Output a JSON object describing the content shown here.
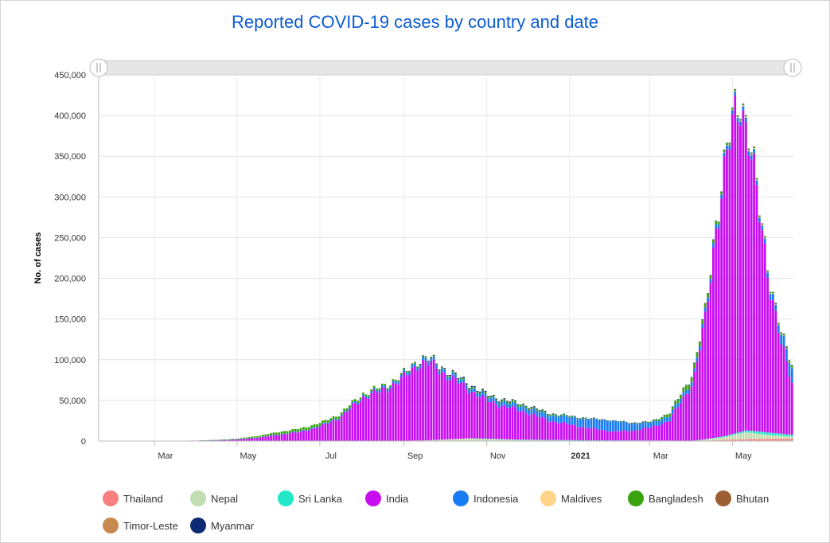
{
  "chart_data": {
    "type": "bar",
    "stacked": true,
    "title": "Reported COVID-19 cases by country and date",
    "ylabel": "No. of cases",
    "xlabel": "",
    "ylim": [
      0,
      450000
    ],
    "xlim": [
      "2020-01-20",
      "2021-06-15"
    ],
    "y_ticks": [
      "0",
      "50,000",
      "100,000",
      "150,000",
      "200,000",
      "250,000",
      "300,000",
      "350,000",
      "400,000",
      "450,000"
    ],
    "x_ticks": [
      {
        "label": "Mar",
        "date": "2020-03-01",
        "bold": false
      },
      {
        "label": "May",
        "date": "2020-05-01",
        "bold": false
      },
      {
        "label": "Jul",
        "date": "2020-07-01",
        "bold": false
      },
      {
        "label": "Sep",
        "date": "2020-09-01",
        "bold": false
      },
      {
        "label": "Nov",
        "date": "2020-11-01",
        "bold": false
      },
      {
        "label": "2021",
        "date": "2021-01-01",
        "bold": true
      },
      {
        "label": "Mar",
        "date": "2021-03-01",
        "bold": false
      },
      {
        "label": "May",
        "date": "2021-05-01",
        "bold": false
      }
    ],
    "grid": true,
    "legend_position": "bottom",
    "series": [
      {
        "name": "Thailand",
        "color": "#f77f7f",
        "points": [
          [
            "2020-01-20",
            0
          ],
          [
            "2021-04-01",
            0
          ],
          [
            "2021-04-15",
            800
          ],
          [
            "2021-05-01",
            2000
          ],
          [
            "2021-05-15",
            2500
          ],
          [
            "2021-06-01",
            3000
          ],
          [
            "2021-06-15",
            3500
          ]
        ]
      },
      {
        "name": "Nepal",
        "color": "#c2ddb0",
        "points": [
          [
            "2020-01-20",
            0
          ],
          [
            "2020-08-10",
            0
          ],
          [
            "2020-09-15",
            800
          ],
          [
            "2020-10-20",
            3500
          ],
          [
            "2020-11-20",
            1500
          ],
          [
            "2021-01-15",
            300
          ],
          [
            "2021-04-01",
            200
          ],
          [
            "2021-04-25",
            3500
          ],
          [
            "2021-05-10",
            8500
          ],
          [
            "2021-05-25",
            5000
          ],
          [
            "2021-06-15",
            1500
          ]
        ]
      },
      {
        "name": "Sri Lanka",
        "color": "#22e8c8",
        "points": [
          [
            "2020-01-20",
            0
          ],
          [
            "2020-10-20",
            0
          ],
          [
            "2020-11-15",
            400
          ],
          [
            "2021-01-15",
            600
          ],
          [
            "2021-04-10",
            300
          ],
          [
            "2021-05-01",
            1500
          ],
          [
            "2021-05-20",
            3000
          ],
          [
            "2021-06-15",
            2500
          ]
        ]
      },
      {
        "name": "India",
        "color": "#c80ef0",
        "points": [
          [
            "2020-01-20",
            0
          ],
          [
            "2020-03-01",
            0
          ],
          [
            "2020-03-25",
            500
          ],
          [
            "2020-04-15",
            1000
          ],
          [
            "2020-05-01",
            2000
          ],
          [
            "2020-05-15",
            4000
          ],
          [
            "2020-06-01",
            8000
          ],
          [
            "2020-06-15",
            11000
          ],
          [
            "2020-07-01",
            18000
          ],
          [
            "2020-07-15",
            29000
          ],
          [
            "2020-08-01",
            54000
          ],
          [
            "2020-08-15",
            62000
          ],
          [
            "2020-09-01",
            78000
          ],
          [
            "2020-09-10",
            94000
          ],
          [
            "2020-09-17",
            96000
          ],
          [
            "2020-10-01",
            80000
          ],
          [
            "2020-10-15",
            63000
          ],
          [
            "2020-11-01",
            46000
          ],
          [
            "2020-11-15",
            40000
          ],
          [
            "2020-12-01",
            33000
          ],
          [
            "2020-12-15",
            24000
          ],
          [
            "2021-01-01",
            19000
          ],
          [
            "2021-01-15",
            15000
          ],
          [
            "2021-02-01",
            11000
          ],
          [
            "2021-02-15",
            12000
          ],
          [
            "2021-03-01",
            16000
          ],
          [
            "2021-03-15",
            25000
          ],
          [
            "2021-04-01",
            72000
          ],
          [
            "2021-04-10",
            145000
          ],
          [
            "2021-04-18",
            260000
          ],
          [
            "2021-04-26",
            340000
          ],
          [
            "2021-05-01",
            385000
          ],
          [
            "2021-05-06",
            410000
          ],
          [
            "2021-05-12",
            360000
          ],
          [
            "2021-05-20",
            265000
          ],
          [
            "2021-05-28",
            180000
          ],
          [
            "2021-06-05",
            110000
          ],
          [
            "2021-06-10",
            80000
          ],
          [
            "2021-06-15",
            55000
          ]
        ]
      },
      {
        "name": "Indonesia",
        "color": "#1a7cf4",
        "points": [
          [
            "2020-01-20",
            0
          ],
          [
            "2020-04-01",
            0
          ],
          [
            "2020-06-01",
            600
          ],
          [
            "2020-08-01",
            2000
          ],
          [
            "2020-10-01",
            4000
          ],
          [
            "2020-11-15",
            5000
          ],
          [
            "2020-12-15",
            7000
          ],
          [
            "2021-01-15",
            11000
          ],
          [
            "2021-01-31",
            13000
          ],
          [
            "2021-02-15",
            9000
          ],
          [
            "2021-03-01",
            6000
          ],
          [
            "2021-04-01",
            5000
          ],
          [
            "2021-05-01",
            5000
          ],
          [
            "2021-05-20",
            5500
          ],
          [
            "2021-06-01",
            8000
          ],
          [
            "2021-06-15",
            20000
          ]
        ]
      },
      {
        "name": "Maldives",
        "color": "#fdd488",
        "points": [
          [
            "2020-01-20",
            0
          ],
          [
            "2021-04-20",
            0
          ],
          [
            "2021-05-10",
            1200
          ],
          [
            "2021-05-25",
            800
          ],
          [
            "2021-06-15",
            300
          ]
        ]
      },
      {
        "name": "Bangladesh",
        "color": "#3ba20f",
        "points": [
          [
            "2020-01-20",
            0
          ],
          [
            "2020-04-01",
            0
          ],
          [
            "2020-05-01",
            800
          ],
          [
            "2020-06-01",
            3000
          ],
          [
            "2020-07-01",
            3500
          ],
          [
            "2020-08-01",
            2500
          ],
          [
            "2020-09-01",
            1700
          ],
          [
            "2020-10-01",
            1300
          ],
          [
            "2020-11-01",
            1700
          ],
          [
            "2020-12-01",
            2000
          ],
          [
            "2021-01-01",
            1000
          ],
          [
            "2021-02-01",
            400
          ],
          [
            "2021-03-01",
            900
          ],
          [
            "2021-04-01",
            6500
          ],
          [
            "2021-04-15",
            4500
          ],
          [
            "2021-05-01",
            1800
          ],
          [
            "2021-06-01",
            1500
          ],
          [
            "2021-06-15",
            3000
          ]
        ]
      },
      {
        "name": "Bhutan",
        "color": "#9b5f33",
        "points": [
          [
            "2020-01-20",
            0
          ],
          [
            "2021-06-15",
            0
          ]
        ]
      },
      {
        "name": "Timor-Leste",
        "color": "#c8894e",
        "points": [
          [
            "2020-01-20",
            0
          ],
          [
            "2021-06-15",
            0
          ]
        ]
      },
      {
        "name": "Myanmar",
        "color": "#0d2b74",
        "points": [
          [
            "2020-01-20",
            0
          ],
          [
            "2020-08-25",
            0
          ],
          [
            "2020-09-15",
            600
          ],
          [
            "2020-10-15",
            1200
          ],
          [
            "2020-11-15",
            1000
          ],
          [
            "2020-12-15",
            600
          ],
          [
            "2021-01-15",
            300
          ],
          [
            "2021-06-01",
            200
          ],
          [
            "2021-06-15",
            500
          ]
        ]
      }
    ]
  }
}
